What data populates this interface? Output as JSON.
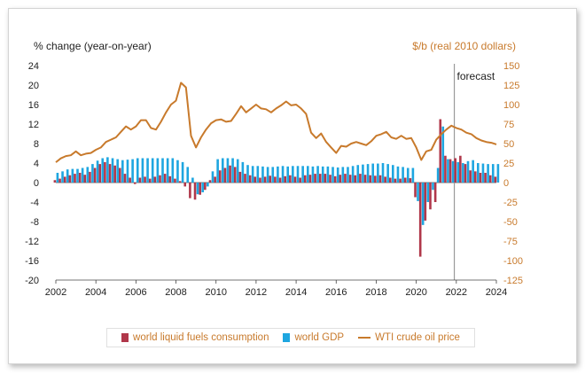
{
  "colors": {
    "consumption": "#b0374a",
    "gdp": "#1ea6e0",
    "oil": "#c87a2c",
    "forecast_line": "#999999",
    "axis": "#222222"
  },
  "chart_data": {
    "type": "bar",
    "left_axis_label": "% change (year-on-year)",
    "right_axis_label": "$/b (real 2010 dollars)",
    "forecast_label": "forecast",
    "forecast_start": 2021.9,
    "xlim": [
      2002,
      2024
    ],
    "ylim_left": [
      -20,
      24
    ],
    "ylim_right": [
      -125,
      150
    ],
    "x_ticks": [
      "2002",
      "2004",
      "2006",
      "2008",
      "2010",
      "2012",
      "2014",
      "2016",
      "2018",
      "2020",
      "2022",
      "2024"
    ],
    "y_ticks_left": [
      "24",
      "20",
      "16",
      "12",
      "8",
      "4",
      "0",
      "-4",
      "-8",
      "-12",
      "-16",
      "-20"
    ],
    "y_ticks_right": [
      "150",
      "125",
      "100",
      "75",
      "50",
      "25",
      "0",
      "-25",
      "-50",
      "-75",
      "-100",
      "-125"
    ],
    "legend": [
      {
        "label": "world liquid fuels consumption",
        "swatch": "bar",
        "series": "consumption"
      },
      {
        "label": "world GDP",
        "swatch": "bar",
        "series": "gdp"
      },
      {
        "label": "WTI crude oil price",
        "swatch": "line",
        "series": "oil"
      }
    ],
    "series": [
      {
        "name": "world liquid fuels consumption",
        "axis": "left",
        "type": "bar",
        "x": [
          2002.0,
          2002.25,
          2002.5,
          2002.75,
          2003.0,
          2003.25,
          2003.5,
          2003.75,
          2004.0,
          2004.25,
          2004.5,
          2004.75,
          2005.0,
          2005.25,
          2005.5,
          2005.75,
          2006.0,
          2006.25,
          2006.5,
          2006.75,
          2007.0,
          2007.25,
          2007.5,
          2007.75,
          2008.0,
          2008.25,
          2008.5,
          2008.75,
          2009.0,
          2009.25,
          2009.5,
          2009.75,
          2010.0,
          2010.25,
          2010.5,
          2010.75,
          2011.0,
          2011.25,
          2011.5,
          2011.75,
          2012.0,
          2012.25,
          2012.5,
          2012.75,
          2013.0,
          2013.25,
          2013.5,
          2013.75,
          2014.0,
          2014.25,
          2014.5,
          2014.75,
          2015.0,
          2015.25,
          2015.5,
          2015.75,
          2016.0,
          2016.25,
          2016.5,
          2016.75,
          2017.0,
          2017.25,
          2017.5,
          2017.75,
          2018.0,
          2018.25,
          2018.5,
          2018.75,
          2019.0,
          2019.25,
          2019.5,
          2019.75,
          2020.0,
          2020.25,
          2020.5,
          2020.75,
          2021.0,
          2021.25,
          2021.5,
          2021.75,
          2022.0,
          2022.25,
          2022.5,
          2022.75,
          2023.0,
          2023.25,
          2023.5,
          2023.75,
          2024.0
        ],
        "values": [
          0.5,
          0.8,
          1.2,
          1.5,
          1.8,
          2.0,
          1.6,
          2.2,
          3.0,
          3.8,
          4.2,
          3.8,
          3.5,
          3.0,
          1.8,
          1.0,
          -0.3,
          1.0,
          1.2,
          0.8,
          1.2,
          1.5,
          1.8,
          1.3,
          0.8,
          0.3,
          -0.8,
          -3.2,
          -3.5,
          -2.5,
          -1.5,
          0.5,
          1.2,
          2.5,
          3.0,
          3.5,
          3.2,
          2.2,
          1.8,
          1.5,
          1.2,
          1.0,
          1.2,
          1.4,
          1.2,
          1.0,
          1.3,
          1.5,
          1.2,
          1.0,
          1.5,
          1.6,
          1.8,
          1.8,
          1.8,
          1.6,
          1.3,
          1.6,
          1.8,
          1.6,
          1.5,
          1.8,
          1.6,
          1.5,
          1.4,
          1.5,
          1.2,
          1.0,
          0.8,
          0.8,
          1.0,
          0.9,
          -3.0,
          -15.2,
          -7.8,
          -5.5,
          -4.0,
          13.0,
          5.5,
          4.8,
          5.0,
          5.5,
          3.8,
          2.5,
          2.3,
          2.0,
          2.0,
          1.5,
          1.2
        ]
      },
      {
        "name": "world GDP",
        "axis": "left",
        "type": "bar",
        "x": [
          2002.0,
          2002.25,
          2002.5,
          2002.75,
          2003.0,
          2003.25,
          2003.5,
          2003.75,
          2004.0,
          2004.25,
          2004.5,
          2004.75,
          2005.0,
          2005.25,
          2005.5,
          2005.75,
          2006.0,
          2006.25,
          2006.5,
          2006.75,
          2007.0,
          2007.25,
          2007.5,
          2007.75,
          2008.0,
          2008.25,
          2008.5,
          2008.75,
          2009.0,
          2009.25,
          2009.5,
          2009.75,
          2010.0,
          2010.25,
          2010.5,
          2010.75,
          2011.0,
          2011.25,
          2011.5,
          2011.75,
          2012.0,
          2012.25,
          2012.5,
          2012.75,
          2013.0,
          2013.25,
          2013.5,
          2013.75,
          2014.0,
          2014.25,
          2014.5,
          2014.75,
          2015.0,
          2015.25,
          2015.5,
          2015.75,
          2016.0,
          2016.25,
          2016.5,
          2016.75,
          2017.0,
          2017.25,
          2017.5,
          2017.75,
          2018.0,
          2018.25,
          2018.5,
          2018.75,
          2019.0,
          2019.25,
          2019.5,
          2019.75,
          2020.0,
          2020.25,
          2020.5,
          2020.75,
          2021.0,
          2021.25,
          2021.5,
          2021.75,
          2022.0,
          2022.25,
          2022.5,
          2022.75,
          2023.0,
          2023.25,
          2023.5,
          2023.75,
          2024.0
        ],
        "values": [
          2.0,
          2.3,
          2.7,
          2.8,
          2.8,
          3.0,
          3.2,
          3.8,
          4.5,
          5.0,
          5.2,
          5.0,
          4.8,
          4.6,
          4.7,
          4.8,
          5.0,
          5.0,
          5.0,
          5.0,
          5.0,
          5.0,
          5.0,
          5.0,
          4.6,
          4.2,
          3.2,
          1.0,
          -2.4,
          -2.0,
          -0.8,
          2.3,
          4.8,
          5.0,
          5.0,
          5.0,
          4.8,
          4.2,
          3.6,
          3.4,
          3.4,
          3.3,
          3.2,
          3.2,
          3.3,
          3.4,
          3.3,
          3.4,
          3.4,
          3.4,
          3.4,
          3.3,
          3.4,
          3.3,
          3.3,
          3.2,
          3.1,
          3.2,
          3.2,
          3.4,
          3.6,
          3.7,
          3.8,
          3.9,
          3.9,
          4.0,
          3.8,
          3.6,
          3.3,
          3.2,
          3.0,
          3.0,
          -3.8,
          -8.7,
          -4.0,
          -1.5,
          3.0,
          11.5,
          4.8,
          4.4,
          4.2,
          4.0,
          4.4,
          4.6,
          4.0,
          3.9,
          3.8,
          3.8,
          3.8
        ]
      },
      {
        "name": "WTI crude oil price",
        "axis": "right",
        "type": "line",
        "x": [
          2002.0,
          2002.25,
          2002.5,
          2002.75,
          2003.0,
          2003.25,
          2003.5,
          2003.75,
          2004.0,
          2004.25,
          2004.5,
          2004.75,
          2005.0,
          2005.25,
          2005.5,
          2005.75,
          2006.0,
          2006.25,
          2006.5,
          2006.75,
          2007.0,
          2007.25,
          2007.5,
          2007.75,
          2008.0,
          2008.25,
          2008.5,
          2008.75,
          2009.0,
          2009.25,
          2009.5,
          2009.75,
          2010.0,
          2010.25,
          2010.5,
          2010.75,
          2011.0,
          2011.25,
          2011.5,
          2011.75,
          2012.0,
          2012.25,
          2012.5,
          2012.75,
          2013.0,
          2013.25,
          2013.5,
          2013.75,
          2014.0,
          2014.25,
          2014.5,
          2014.75,
          2015.0,
          2015.25,
          2015.5,
          2015.75,
          2016.0,
          2016.25,
          2016.5,
          2016.75,
          2017.0,
          2017.25,
          2017.5,
          2017.75,
          2018.0,
          2018.25,
          2018.5,
          2018.75,
          2019.0,
          2019.25,
          2019.5,
          2019.75,
          2020.0,
          2020.25,
          2020.5,
          2020.75,
          2021.0,
          2021.25,
          2021.5,
          2021.75,
          2022.0,
          2022.25,
          2022.5,
          2022.75,
          2023.0,
          2023.25,
          2023.5,
          2023.75,
          2024.0
        ],
        "values": [
          26,
          31,
          34,
          35,
          40,
          35,
          37,
          38,
          42,
          45,
          52,
          55,
          58,
          65,
          72,
          68,
          72,
          80,
          80,
          70,
          68,
          78,
          90,
          100,
          105,
          128,
          122,
          60,
          45,
          58,
          68,
          76,
          80,
          81,
          78,
          79,
          88,
          98,
          90,
          95,
          100,
          95,
          94,
          90,
          95,
          99,
          104,
          99,
          100,
          95,
          88,
          64,
          57,
          63,
          52,
          45,
          38,
          47,
          46,
          50,
          52,
          50,
          48,
          53,
          60,
          62,
          65,
          58,
          56,
          60,
          56,
          57,
          45,
          29,
          40,
          42,
          55,
          62,
          68,
          73,
          70,
          68,
          64,
          62,
          57,
          54,
          52,
          51,
          49
        ]
      }
    ]
  }
}
